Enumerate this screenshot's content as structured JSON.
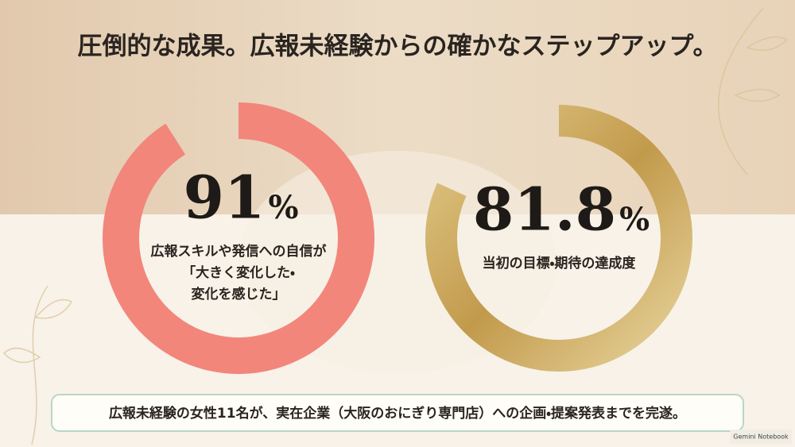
{
  "title": "圧倒的な成果。広報未経験からの確かなステップアップ。",
  "range": [
    0,
    100
  ],
  "stats": [
    {
      "value": 91,
      "unit": "%",
      "color": "#f2867b",
      "label_lines": [
        "広報スキルや発信への自信が",
        "「大きく変化した・",
        "変化を感じた」"
      ]
    },
    {
      "value": 81.8,
      "unit": "%",
      "color": "#c9a85c",
      "label_lines": [
        "当初の目標・期待の達成度"
      ]
    }
  ],
  "footer": "広報未経験の女性11名が、実在企業（大阪のおにぎり専門店）への企画・提案発表までを完遂。",
  "badge": "Gemini Notebook"
}
